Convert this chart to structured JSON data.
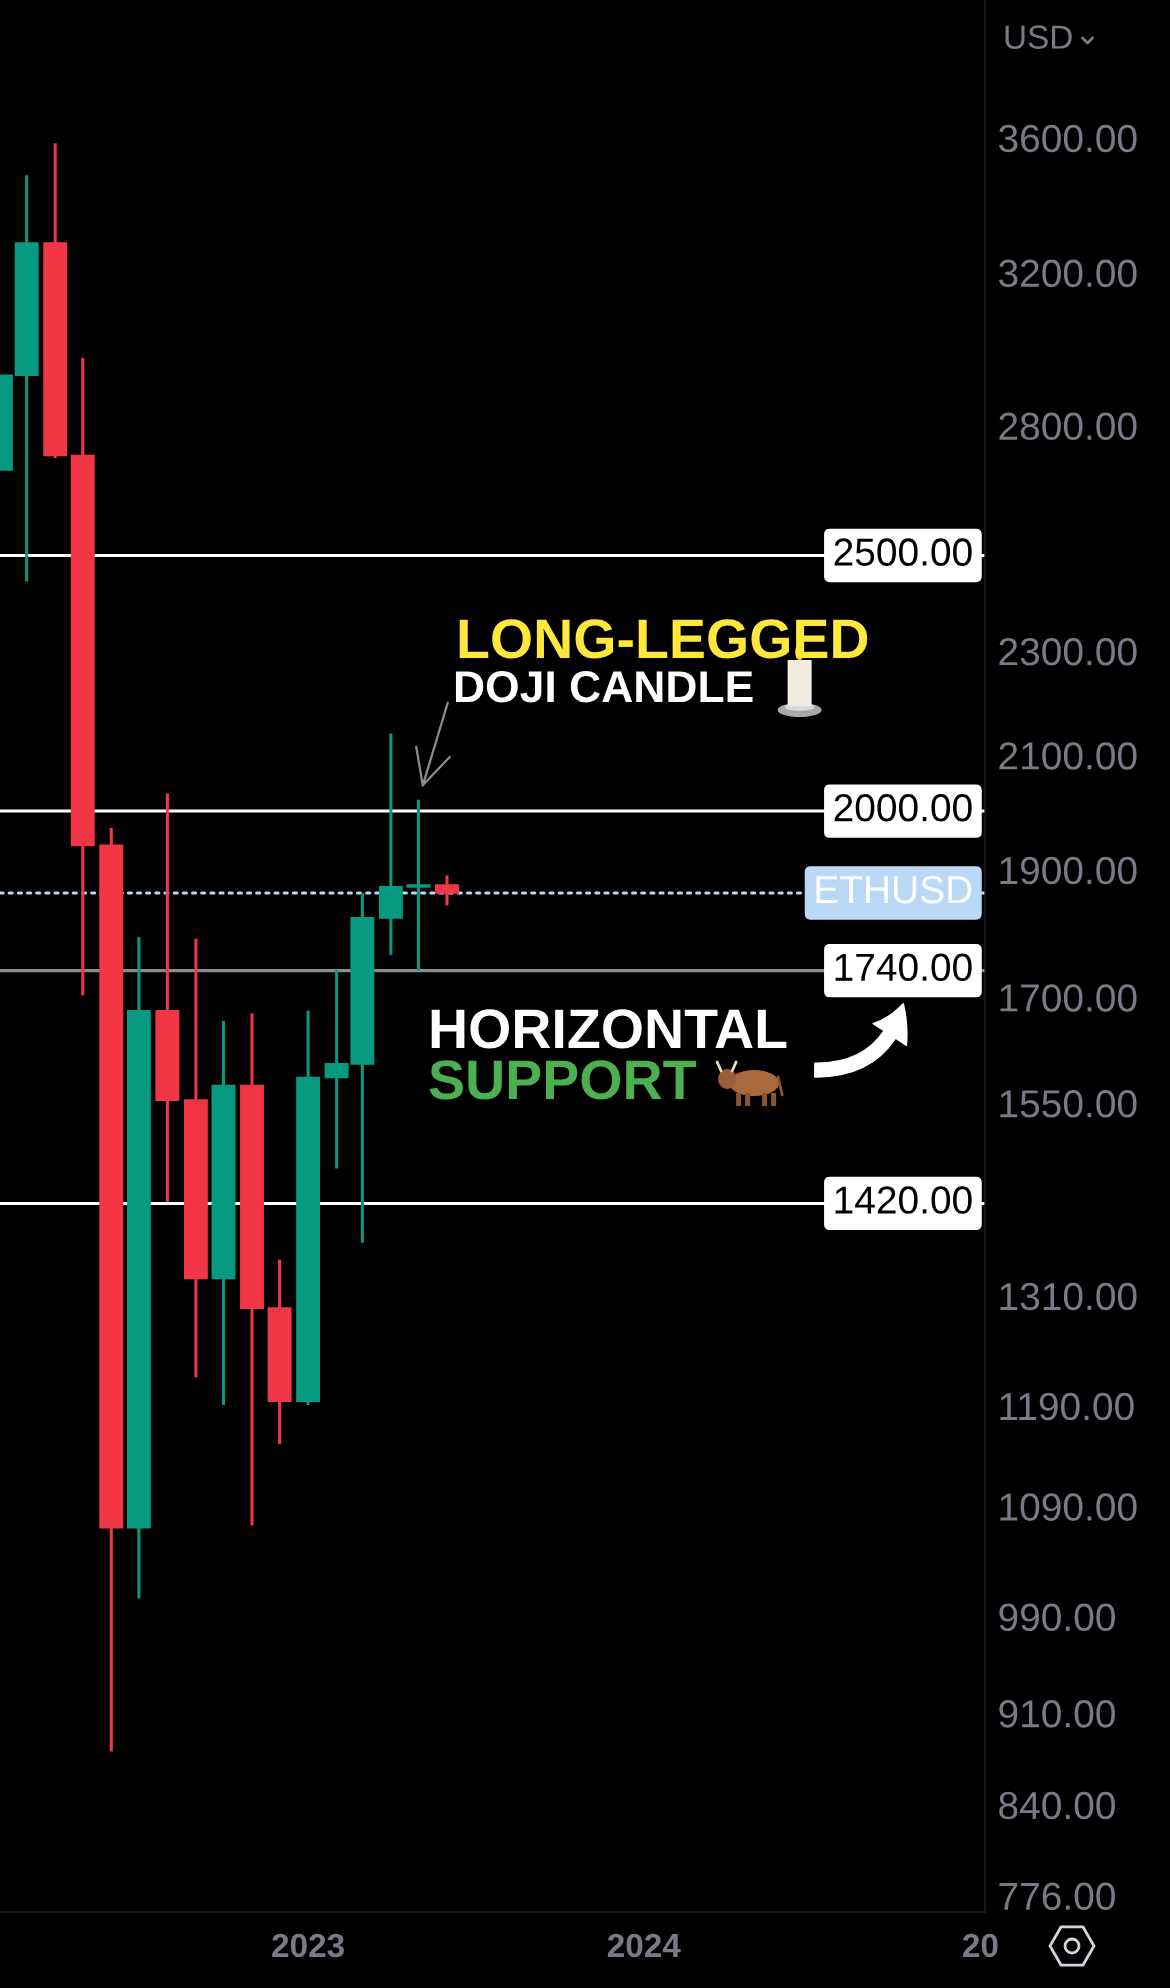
{
  "chart_data": {
    "type": "candlestick",
    "x": [
      "2022-02",
      "2022-03",
      "2022-04",
      "2022-05",
      "2022-06",
      "2022-07",
      "2022-08",
      "2022-09",
      "2022-10",
      "2022-11",
      "2022-12",
      "2023-01",
      "2023-02",
      "2023-03",
      "2023-04",
      "2023-05",
      "2023-06"
    ],
    "ohlc": [
      [
        2694,
        2926,
        2694,
        2926
      ],
      [
        2926,
        3484,
        2444,
        3284
      ],
      [
        3284,
        3583,
        2722,
        2728
      ],
      [
        2728,
        2971,
        1703,
        1941
      ],
      [
        1941,
        1971,
        880,
        1070
      ],
      [
        1070,
        1792,
        1006,
        1680
      ],
      [
        1680,
        2031,
        1422,
        1554
      ],
      [
        1554,
        1789,
        1220,
        1330
      ],
      [
        1330,
        1665,
        1191,
        1574
      ],
      [
        1574,
        1676,
        1072,
        1296
      ],
      [
        1296,
        1352,
        1151,
        1195
      ],
      [
        1195,
        1680,
        1191,
        1585
      ],
      [
        1585,
        1741,
        1464,
        1604
      ],
      [
        1604,
        1862,
        1372,
        1822
      ],
      [
        1822,
        2140,
        1764,
        1872
      ],
      [
        1872,
        2020,
        1740,
        1875
      ],
      [
        1875,
        1891,
        1842,
        1862
      ]
    ],
    "colors": [
      "#089981",
      "#089981",
      "#f23645",
      "#f23645",
      "#f23645",
      "#089981",
      "#f23645",
      "#f23645",
      "#089981",
      "#f23645",
      "#f23645",
      "#089981",
      "#089981",
      "#089981",
      "#089981",
      "#089981",
      "#f23645"
    ],
    "log": true,
    "xlim": [
      "2022-01-31",
      "2025-01-06"
    ],
    "xticks": [
      {
        "value": "2023-01",
        "label": "2023"
      },
      {
        "value": "2024-01",
        "label": "2024"
      },
      {
        "value": "2025-01",
        "label": "20"
      }
    ],
    "ylim": [
      765,
      4060
    ],
    "yticks": [
      {
        "value": 3600,
        "label": "3600.00"
      },
      {
        "value": 3200,
        "label": "3200.00"
      },
      {
        "value": 2800,
        "label": "2800.00"
      },
      {
        "value": 2300,
        "label": "2300.00"
      },
      {
        "value": 2100,
        "label": "2100.00"
      },
      {
        "value": 1900,
        "label": "1900.00"
      },
      {
        "value": 1700,
        "label": "1700.00"
      },
      {
        "value": 1550,
        "label": "1550.00"
      },
      {
        "value": 1310,
        "label": "1310.00"
      },
      {
        "value": 1190,
        "label": "1190.00"
      },
      {
        "value": 1090,
        "label": "1090.00"
      },
      {
        "value": 990,
        "label": "990.00"
      },
      {
        "value": 910,
        "label": "910.00"
      },
      {
        "value": 840,
        "label": "840.00"
      },
      {
        "value": 776,
        "label": "776.00"
      }
    ],
    "ylabel": "USD",
    "ref_lines": [
      {
        "axis": "y",
        "value": 2500,
        "label": "2500.00",
        "color": "#ffffff",
        "line_style": "solid"
      },
      {
        "axis": "y",
        "value": 2000,
        "label": "2000.00",
        "color": "#ffffff",
        "line_style": "solid"
      },
      {
        "axis": "y",
        "value": 1862,
        "label": "ETHUSD",
        "color": "#bbd9f7",
        "line_style": "dotted"
      },
      {
        "axis": "y",
        "value": 1740,
        "label": "1740.00",
        "color": "#8c8c8c",
        "line_style": "solid"
      },
      {
        "axis": "y",
        "value": 1420,
        "label": "1420.00",
        "color": "#ffffff",
        "line_style": "solid"
      }
    ],
    "annotations": [
      "LONG-LEGGED",
      {
        "text": "DOJI CANDLE",
        "x": "2023-05",
        "y": 2020
      },
      "HORIZONTAL",
      "SUPPORT"
    ]
  }
}
